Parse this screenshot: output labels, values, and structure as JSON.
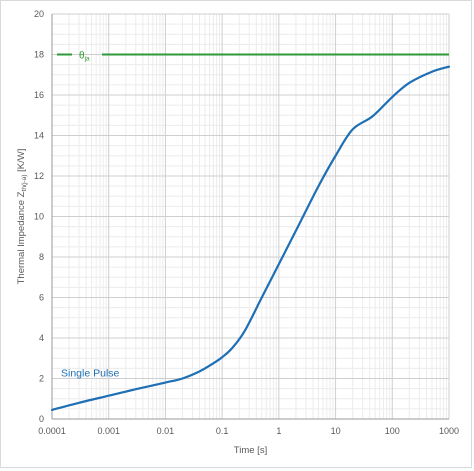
{
  "chart_data": {
    "type": "line",
    "xlabel": "Time [s]",
    "ylabel": "Thermal Impedance Z",
    "ylabel_subscript": "th(j-a)",
    "ylabel_unit": " [K/W]",
    "x_scale": "log",
    "xlim": [
      0.0001,
      1000
    ],
    "ylim": [
      0,
      20
    ],
    "x_ticks": [
      0.0001,
      0.001,
      0.01,
      0.1,
      1,
      10,
      100,
      1000
    ],
    "x_tick_labels": [
      "0.0001",
      "0.001",
      "0.01",
      "0.1",
      "1",
      "10",
      "100",
      "1000"
    ],
    "y_ticks": [
      0,
      2,
      4,
      6,
      8,
      10,
      12,
      14,
      16,
      18,
      20
    ],
    "y_tick_labels": [
      "0",
      "2",
      "4",
      "6",
      "8",
      "10",
      "12",
      "14",
      "16",
      "18",
      "20"
    ],
    "grid": true,
    "series": [
      {
        "name": "Single Pulse",
        "color": "#1f6fb5",
        "x": [
          0.0001,
          0.0003,
          0.001,
          0.003,
          0.01,
          0.02,
          0.04,
          0.07,
          0.1,
          0.15,
          0.25,
          0.5,
          1,
          2,
          5,
          10,
          20,
          45,
          100,
          200,
          500,
          1000
        ],
        "y": [
          0.45,
          0.8,
          1.15,
          1.47,
          1.8,
          2.0,
          2.35,
          2.75,
          3.05,
          3.5,
          4.35,
          6.0,
          7.65,
          9.3,
          11.5,
          13.0,
          14.3,
          14.95,
          15.9,
          16.6,
          17.15,
          17.4
        ]
      },
      {
        "name": "θ",
        "name_subscript": "ja",
        "color": "#2e9a3a",
        "x": [
          0.0001,
          1000
        ],
        "y": [
          18,
          18
        ]
      }
    ]
  }
}
